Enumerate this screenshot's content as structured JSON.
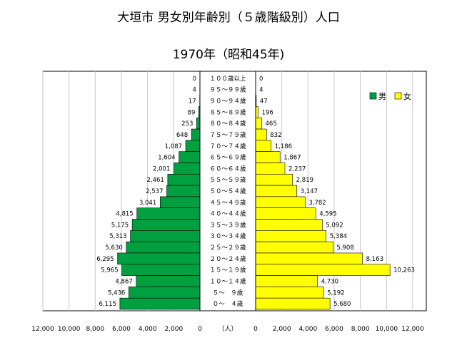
{
  "title": "大垣市 男女別年齢別（５歳階級別）人口",
  "subtitle": "1970年（昭和45年)",
  "chart_data": {
    "type": "bar",
    "orientation": "horizontal-population-pyramid",
    "categories": [
      "１００歳以上",
      "９５～９９歳",
      "９０～９４歳",
      "８５～８９歳",
      "８０～８４歳",
      "７５～７９歳",
      "７０～７４歳",
      "６５～６９歳",
      "６０～６４歳",
      "５５～５９歳",
      "５０～５４歳",
      "４５～４９歳",
      "４０～４４歳",
      "３５～３９歳",
      "３０～３４歳",
      "２５～２９歳",
      "２０～２４歳",
      "１５～１９歳",
      "１０～１４歳",
      "５～　９歳",
      "０～　４歳"
    ],
    "series": [
      {
        "name": "男",
        "color": "#00a040",
        "side": "left",
        "values": [
          0,
          4,
          17,
          89,
          253,
          648,
          1087,
          1604,
          2001,
          2461,
          2537,
          3041,
          4815,
          5175,
          5313,
          5630,
          6295,
          5965,
          4867,
          5436,
          6115
        ],
        "labels": [
          "0",
          "4",
          "17",
          "89",
          "253",
          "648",
          "1,087",
          "1,604",
          "2,001",
          "2,461",
          "2,537",
          "3,041",
          "4,815",
          "5,175",
          "5,313",
          "5,630",
          "6,295",
          "5,965",
          "4,867",
          "5,436",
          "6,115"
        ]
      },
      {
        "name": "女",
        "color": "#ffff00",
        "side": "right",
        "values": [
          0,
          4,
          47,
          196,
          465,
          832,
          1186,
          1867,
          2237,
          2819,
          3147,
          3782,
          4595,
          5092,
          5384,
          5908,
          8163,
          10263,
          4730,
          5192,
          5680
        ],
        "labels": [
          "0",
          "4",
          "47",
          "196",
          "465",
          "832",
          "1,186",
          "1,867",
          "2,237",
          "2,819",
          "3,147",
          "3,782",
          "4,595",
          "5,092",
          "5,384",
          "5,908",
          "8,163",
          "10,263",
          "4,730",
          "5,192",
          "5,680"
        ]
      }
    ],
    "xlim": [
      0,
      12000
    ],
    "left_ticks": [
      "12,000",
      "10,000",
      "8,000",
      "6,000",
      "4,000",
      "2,000",
      "0"
    ],
    "right_ticks": [
      "0",
      "2,000",
      "4,000",
      "6,000",
      "8,000",
      "10,000",
      "12,000"
    ],
    "tick_values": [
      12000,
      10000,
      8000,
      6000,
      4000,
      2000,
      0
    ],
    "unit_label": "（人）",
    "legend_position": "top-right",
    "grid": true
  }
}
